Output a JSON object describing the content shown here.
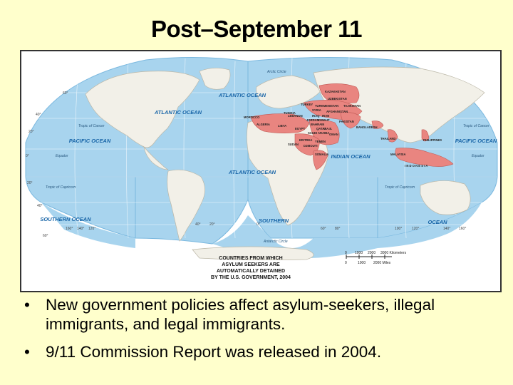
{
  "title": "Post–September 11",
  "colors": {
    "background": "#ffffcc",
    "ocean": "#a8d4ee",
    "land": "#f2f0e8",
    "highlight": "#e98580",
    "highlight_label": "#222222",
    "ocean_label": "#1a66a8"
  },
  "map": {
    "oceans": {
      "atlantic_north": "ATLANTIC OCEAN",
      "atlantic_mid": "ATLANTIC OCEAN",
      "atlantic_south": "ATLANTIC OCEAN",
      "pacific_west": "PACIFIC OCEAN",
      "pacific_east": "PACIFIC OCEAN",
      "indian": "INDIAN OCEAN",
      "southern_west": "SOUTHERN OCEAN",
      "southern_mid": "SOUTHERN",
      "southern_east": "OCEAN"
    },
    "circles": {
      "arctic": "Arctic Circle",
      "cancer_w": "Tropic of Cancer",
      "cancer_e": "Tropic of Cancer",
      "equator_w": "Equator",
      "equator_e": "Equator",
      "capricorn_w": "Tropic of Capricorn",
      "capricorn_e": "Tropic of Capricorn",
      "antarctic": "Antarctic Circle"
    },
    "countries": {
      "kazakhstan": "KAZAKHSTAN",
      "uzbekistan": "UZBEKISTAN",
      "turkey": "TURKEY",
      "turkmenistan": "TURKMENISTAN",
      "tajikistan": "TAJIKISTAN",
      "tunisia": "TUNISIA",
      "syria": "SYRIA",
      "afghanistan": "AFGHANISTAN",
      "lebanon": "LEBANON",
      "iraq": "IRAQ",
      "iran": "IRAN",
      "morocco": "MOROCCO",
      "jordan": "JORDAN",
      "kuwait": "KUWAIT",
      "pakistan": "PAKISTAN",
      "algeria": "ALGERIA",
      "libya": "LIBYA",
      "egypt": "EGYPT",
      "bahrain": "BAHRAIN",
      "qatar": "QATAR",
      "uae": "U.A.E.",
      "saudi_arabia": "SAUDI ARABIA",
      "oman": "OMAN",
      "bangladesh": "BANGLADESH",
      "eritrea": "ERITREA",
      "yemen": "YEMEN",
      "thailand": "THAILAND",
      "philippines": "PHILIPPINES",
      "sudan": "SUDAN",
      "djibouti": "DJIBOUTI",
      "somalia": "SOMALIA",
      "malaysia": "MALAYSIA",
      "indonesia": "I N D O N E S I A"
    },
    "degree_labels": {
      "lat_60_n": "60°",
      "lat_40_n": "40°",
      "lat_20_n": "20°",
      "lat_0": "0°",
      "lat_20_s": "20°",
      "lat_40_s": "40°",
      "lat_60_s": "60°",
      "lon_160_w": "160°",
      "lon_140_w": "140°",
      "lon_120_w": "120°",
      "lon_40_w": "40°",
      "lon_20_w": "20°",
      "lon_0": "0°",
      "lon_60_e": "60°",
      "lon_80_e": "80°",
      "lon_100_e": "100°",
      "lon_120_e": "120°",
      "lon_140_e": "140°",
      "lon_160_e": "160°"
    },
    "scale": {
      "km_ticks": [
        "0",
        "1000",
        "2000",
        "3000 Kilometers"
      ],
      "mi_ticks": [
        "0",
        "1000",
        "2000 Miles"
      ]
    },
    "caption": [
      "COUNTRIES FROM WHICH",
      "ASYLUM SEEKERS ARE",
      "AUTOMATICALLY DETAINED",
      "BY THE U.S. GOVERNMENT, 2004"
    ]
  },
  "bullets": [
    "New government policies affect asylum-seekers, illegal immigrants, and legal immigrants.",
    "9/11 Commission Report was released in 2004."
  ]
}
